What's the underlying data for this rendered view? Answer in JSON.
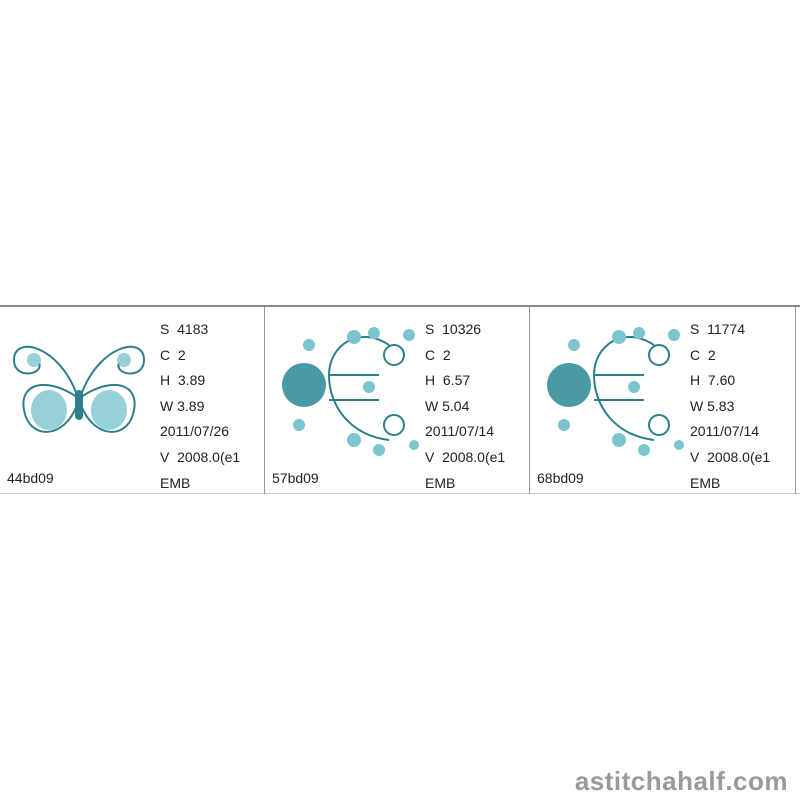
{
  "designs": [
    {
      "name": "44bd09",
      "stitches": "S  4183",
      "colors": "C  2",
      "height": "H  3.89",
      "width": "W 3.89",
      "date": "2011/07/26",
      "version": "V  2008.0(e1",
      "format": "EMB",
      "icon": "butterfly-design"
    },
    {
      "name": "57bd09",
      "stitches": "S  10326",
      "colors": "C  2",
      "height": "H  6.57",
      "width": "W 5.04",
      "date": "2011/07/14",
      "version": "V  2008.0(e1",
      "format": "EMB",
      "icon": "floral-c-design"
    },
    {
      "name": "68bd09",
      "stitches": "S  11774",
      "colors": "C  2",
      "height": "H  7.60",
      "width": "W 5.83",
      "date": "2011/07/14",
      "version": "V  2008.0(e1",
      "format": "EMB",
      "icon": "floral-c-design"
    }
  ],
  "watermark": "astitchahalf.com",
  "colors": {
    "thread_dark": "#2e7f8c",
    "thread_light": "#7cc5cf"
  }
}
